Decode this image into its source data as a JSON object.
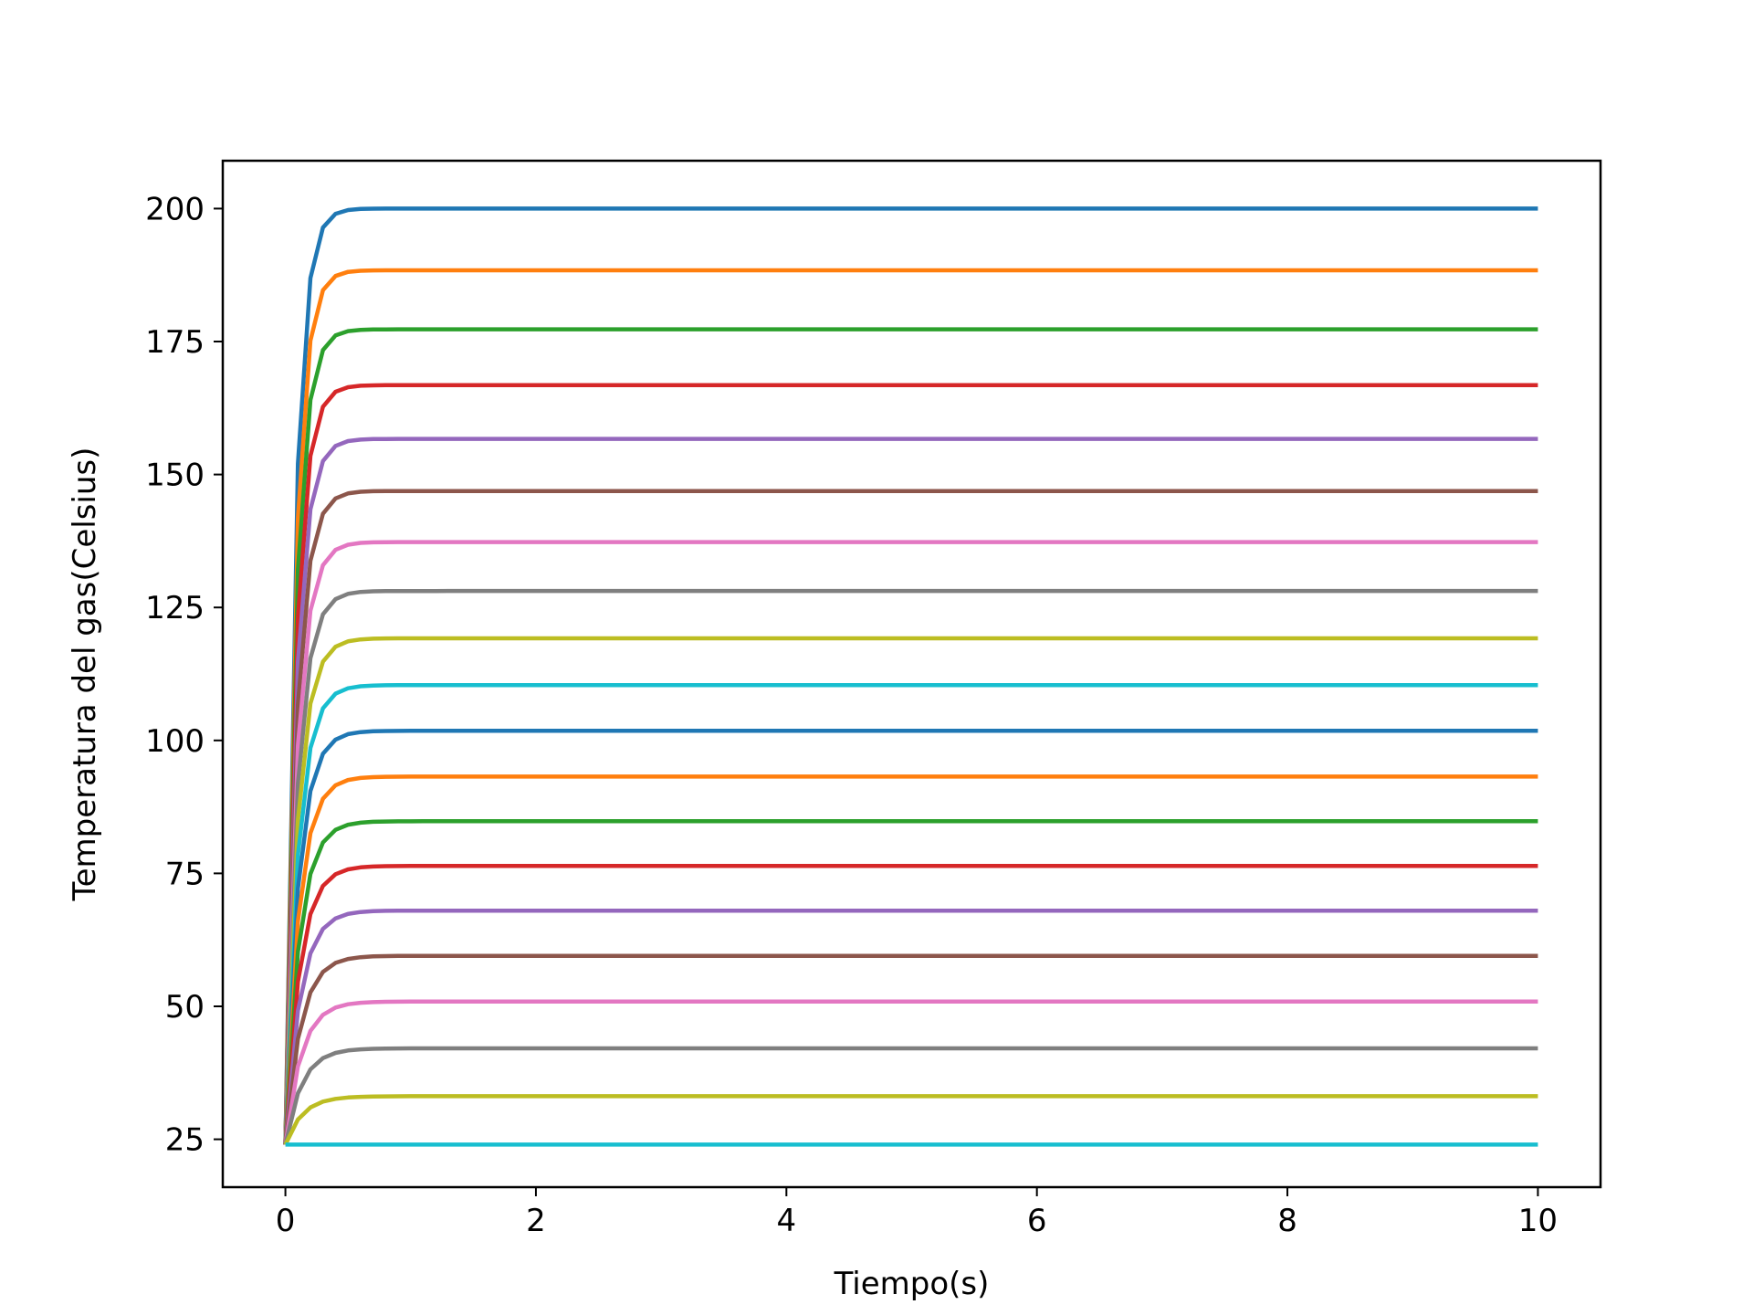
{
  "chart_data": {
    "type": "line",
    "title": "",
    "xlabel": "Tiempo(s)",
    "ylabel": "Temperatura del gas(Celsius)",
    "xlim": [
      -0.5,
      10.5
    ],
    "ylim": [
      16,
      209
    ],
    "x_ticks": [
      0,
      2,
      4,
      6,
      8,
      10
    ],
    "x_tick_labels": [
      "0",
      "2",
      "4",
      "6",
      "8",
      "10"
    ],
    "y_ticks": [
      25,
      50,
      75,
      100,
      125,
      150,
      175,
      200
    ],
    "y_tick_labels": [
      "25",
      "50",
      "75",
      "100",
      "125",
      "150",
      "175",
      "200"
    ],
    "grid": false,
    "legend": "none",
    "series_shape": "Each series starts at 24 at t=0 and rises within about 0.5 s to its steady value, then stays flat until t=10.",
    "initial_value": 24,
    "series": [
      {
        "final": 200,
        "color": "#1f77b4"
      },
      {
        "final": 188.4,
        "color": "#ff7f0e"
      },
      {
        "final": 177.3,
        "color": "#2ca02c"
      },
      {
        "final": 166.8,
        "color": "#d62728"
      },
      {
        "final": 156.7,
        "color": "#9467bd"
      },
      {
        "final": 146.9,
        "color": "#8c564b"
      },
      {
        "final": 137.3,
        "color": "#e377c2"
      },
      {
        "final": 128.1,
        "color": "#7f7f7f"
      },
      {
        "final": 119.2,
        "color": "#bcbd22"
      },
      {
        "final": 110.4,
        "color": "#17becf"
      },
      {
        "final": 101.8,
        "color": "#1f77b4"
      },
      {
        "final": 93.2,
        "color": "#ff7f0e"
      },
      {
        "final": 84.8,
        "color": "#2ca02c"
      },
      {
        "final": 76.4,
        "color": "#d62728"
      },
      {
        "final": 68.0,
        "color": "#9467bd"
      },
      {
        "final": 59.5,
        "color": "#8c564b"
      },
      {
        "final": 50.9,
        "color": "#e377c2"
      },
      {
        "final": 42.1,
        "color": "#7f7f7f"
      },
      {
        "final": 33.1,
        "color": "#bcbd22"
      },
      {
        "final": 24.0,
        "color": "#17becf"
      }
    ]
  }
}
